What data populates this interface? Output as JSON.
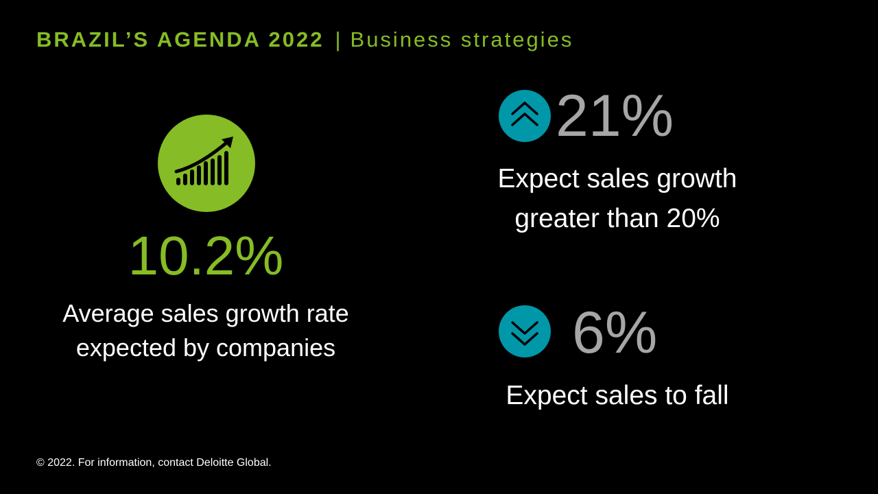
{
  "header": {
    "title": "BRAZIL’S AGENDA 2022",
    "separator": "|",
    "subtitle": "Business strategies"
  },
  "main_stat": {
    "icon": "growth-chart-icon",
    "value": "10.2%",
    "caption_line1": "Average sales growth rate",
    "caption_line2": "expected by companies"
  },
  "stats": [
    {
      "icon": "chevron-up-icon",
      "value": "21%",
      "caption_line1": "Expect sales growth",
      "caption_line2": "greater than 20%"
    },
    {
      "icon": "chevron-down-icon",
      "value": "6%",
      "caption_line1": "Expect sales to fall"
    }
  ],
  "footer": {
    "text": "© 2022. For information, contact Deloitte Global."
  },
  "colors": {
    "background": "#000000",
    "accent_green": "#86bc25",
    "accent_teal": "#0097a9",
    "stat_gray": "#a6a6a6",
    "text_white": "#ffffff"
  }
}
